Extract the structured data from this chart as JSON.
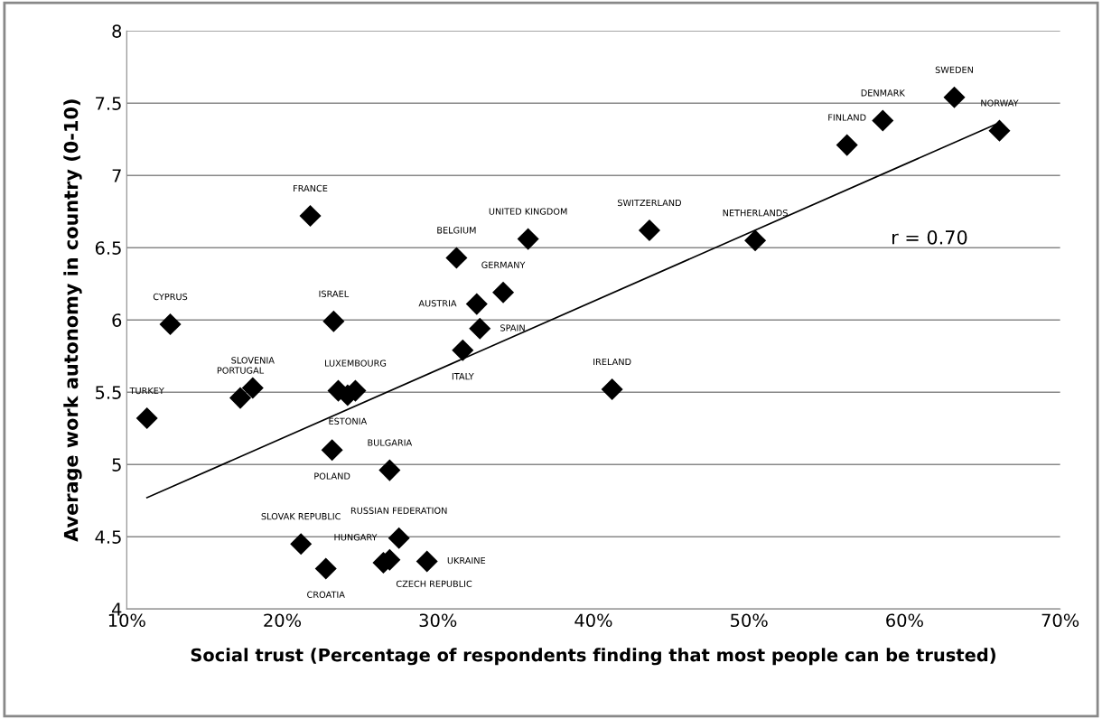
{
  "chart_data": {
    "type": "scatter",
    "xlabel": "Social trust (Percentage of respondents finding that most people can be trusted)",
    "ylabel": "Average work autonomy in country (0-10)",
    "xlim": [
      10,
      70
    ],
    "ylim": [
      4,
      8
    ],
    "xticks": [
      {
        "value": 10,
        "label": "10%"
      },
      {
        "value": 20,
        "label": "20%"
      },
      {
        "value": 30,
        "label": "30%"
      },
      {
        "value": 40,
        "label": "40%"
      },
      {
        "value": 50,
        "label": "50%"
      },
      {
        "value": 60,
        "label": "60%"
      },
      {
        "value": 70,
        "label": "70%"
      }
    ],
    "yticks": [
      4,
      4.5,
      5,
      5.5,
      6,
      6.5,
      7,
      7.5,
      8
    ],
    "grid": "y",
    "legend": false,
    "series": [
      {
        "type": "scatter",
        "color": "#000000",
        "marker": "diamond",
        "x": [
          21.8,
          31.2,
          35.8,
          34.2,
          32.5,
          32.7,
          31.6,
          12.8,
          23.3,
          18.1,
          17.3,
          11.3,
          23.6,
          24.2,
          24.7,
          23.2,
          26.9,
          21.2,
          22.8,
          27.5,
          26.5,
          26.9,
          29.3,
          43.6,
          50.4,
          56.3,
          58.6,
          63.2,
          66.1,
          41.2
        ],
        "values": [
          6.72,
          6.43,
          6.56,
          6.19,
          6.11,
          5.94,
          5.79,
          5.97,
          5.99,
          5.53,
          5.46,
          5.32,
          5.51,
          5.48,
          5.51,
          5.1,
          4.96,
          4.45,
          4.28,
          4.49,
          4.32,
          4.34,
          4.33,
          6.62,
          6.55,
          7.21,
          7.38,
          7.54,
          7.31,
          5.52
        ]
      },
      {
        "type": "line",
        "color": "#000000",
        "marker": "none",
        "line_style": "solid",
        "x": [
          11.3,
          66.0
        ],
        "values": [
          4.77,
          7.36
        ]
      }
    ],
    "annotations": [
      {
        "text": "FRANCE",
        "x": 21.8,
        "y": 6.72
      },
      {
        "text": "BELGIUM",
        "x": 31.2,
        "y": 6.43
      },
      {
        "text": "UNITED KINGDOM",
        "x": 35.8,
        "y": 6.56
      },
      {
        "text": "GERMANY",
        "x": 34.2,
        "y": 6.19
      },
      {
        "text": "AUSTRIA",
        "x": 32.5,
        "y": 6.11
      },
      {
        "text": "SPAIN",
        "x": 32.7,
        "y": 5.94
      },
      {
        "text": "ITALY",
        "x": 31.6,
        "y": 5.79
      },
      {
        "text": "CYPRUS",
        "x": 12.8,
        "y": 5.97
      },
      {
        "text": "ISRAEL",
        "x": 23.3,
        "y": 5.99
      },
      {
        "text": "SLOVENIA",
        "x": 18.1,
        "y": 5.53
      },
      {
        "text": "PORTUGAL",
        "x": 17.3,
        "y": 5.46
      },
      {
        "text": "TURKEY",
        "x": 11.3,
        "y": 5.32
      },
      {
        "text": "LUXEMBOURG",
        "x": 24.7,
        "y": 5.51
      },
      {
        "text": "ESTONIA",
        "x": 24.2,
        "y": 5.48
      },
      {
        "text": "POLAND",
        "x": 23.2,
        "y": 5.1
      },
      {
        "text": "BULGARIA",
        "x": 26.9,
        "y": 4.96
      },
      {
        "text": "SLOVAK REPUBLIC",
        "x": 21.2,
        "y": 4.45
      },
      {
        "text": "CROATIA",
        "x": 22.8,
        "y": 4.28
      },
      {
        "text": "RUSSIAN FEDERATION",
        "x": 27.5,
        "y": 4.49
      },
      {
        "text": "CZECH REPUBLIC",
        "x": 26.5,
        "y": 4.32
      },
      {
        "text": "HUNGARY",
        "x": 26.9,
        "y": 4.34
      },
      {
        "text": "UKRAINE",
        "x": 29.3,
        "y": 4.33
      },
      {
        "text": "SWITZERLAND",
        "x": 43.6,
        "y": 6.62
      },
      {
        "text": "NETHERLANDS",
        "x": 50.4,
        "y": 6.55
      },
      {
        "text": "FINLAND",
        "x": 56.3,
        "y": 7.21
      },
      {
        "text": "DENMARK",
        "x": 58.6,
        "y": 7.38
      },
      {
        "text": "SWEDEN",
        "x": 63.2,
        "y": 7.54
      },
      {
        "text": "NORWAY",
        "x": 66.1,
        "y": 7.31
      },
      {
        "text": "IRELAND",
        "x": 41.2,
        "y": 5.52
      },
      "r = 0.70"
    ]
  }
}
